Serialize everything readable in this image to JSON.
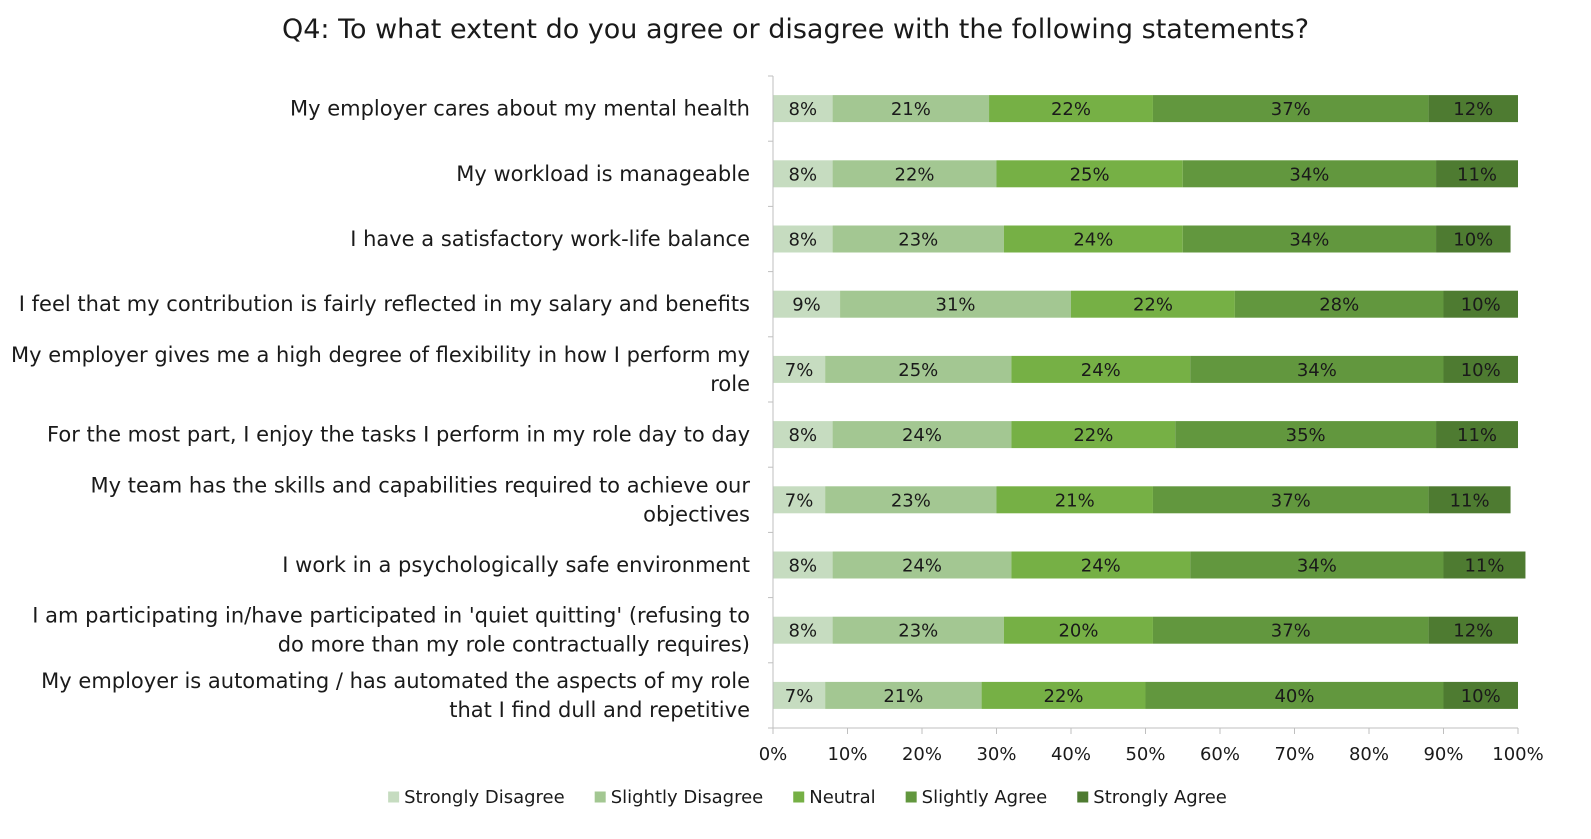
{
  "chart_data": {
    "type": "bar",
    "orientation": "horizontal",
    "stacked": true,
    "title": "Q4: To what extent do you agree or disagree with the following statements?",
    "categories": [
      "My employer cares about my mental health",
      "My workload is manageable",
      "I have a satisfactory work-life balance",
      "I feel that my contribution is fairly reflected in my salary and benefits",
      "My employer gives me a high degree of flexibility in how I perform my role",
      "For the most part, I enjoy the tasks I perform in my role day to day",
      "My team has the skills and capabilities required to achieve our objectives",
      "I work in a psychologically safe environment",
      "I am participating in/have participated in 'quiet quitting' (refusing to do more than my role contractually requires)",
      "My employer is automating / has automated the aspects of my role that I find dull and repetitive"
    ],
    "series": [
      {
        "name": "Strongly Disagree",
        "color": "#c6dcc0",
        "values": [
          8,
          8,
          8,
          9,
          7,
          8,
          7,
          8,
          8,
          7
        ]
      },
      {
        "name": "Slightly Disagree",
        "color": "#a3c792",
        "values": [
          21,
          22,
          23,
          31,
          25,
          24,
          23,
          24,
          23,
          21
        ]
      },
      {
        "name": "Neutral",
        "color": "#76b045",
        "values": [
          22,
          25,
          24,
          22,
          24,
          22,
          21,
          24,
          20,
          22
        ]
      },
      {
        "name": "Slightly Agree",
        "color": "#62973e",
        "values": [
          37,
          34,
          34,
          28,
          34,
          35,
          37,
          34,
          37,
          40
        ]
      },
      {
        "name": "Strongly Agree",
        "color": "#4e7b31",
        "values": [
          12,
          11,
          10,
          10,
          10,
          11,
          11,
          11,
          12,
          10
        ]
      }
    ],
    "xlim": [
      0,
      100
    ],
    "x_ticks": [
      "0%",
      "10%",
      "20%",
      "30%",
      "40%",
      "50%",
      "60%",
      "70%",
      "80%",
      "90%",
      "100%"
    ],
    "value_suffix": "%",
    "legend_position": "bottom",
    "grid": false
  }
}
